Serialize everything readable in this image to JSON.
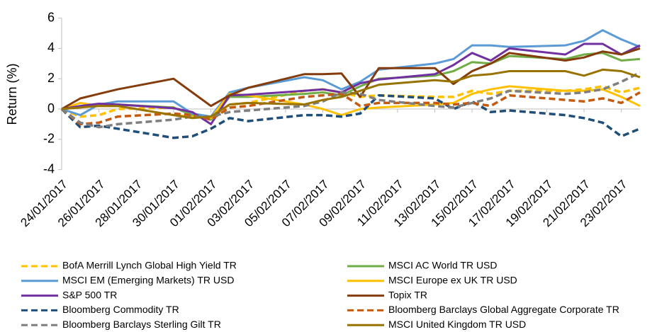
{
  "chart_data": {
    "type": "line",
    "y_label": "Return (%)",
    "x": [
      "24/01/2017",
      "25/01/2017",
      "26/01/2017",
      "27/01/2017",
      "30/01/2017",
      "31/01/2017",
      "01/02/2017",
      "02/02/2017",
      "03/02/2017",
      "06/02/2017",
      "07/02/2017",
      "08/02/2017",
      "09/02/2017",
      "10/02/2017",
      "13/02/2017",
      "14/02/2017",
      "15/02/2017",
      "16/02/2017",
      "17/02/2017",
      "20/02/2017",
      "21/02/2017",
      "22/02/2017",
      "23/02/2017",
      "24/02/2017"
    ],
    "xlim": [
      "24/01/2017",
      "24/02/2017"
    ],
    "xticks": [
      "24/01/2017",
      "26/01/2017",
      "28/01/2017",
      "30/01/2017",
      "01/02/2017",
      "03/02/2017",
      "05/02/2017",
      "07/02/2017",
      "09/02/2017",
      "11/02/2017",
      "13/02/2017",
      "15/02/2017",
      "17/02/2017",
      "19/02/2017",
      "21/02/2017",
      "23/02/2017"
    ],
    "ylim": [
      -4,
      6
    ],
    "yticks": [
      -4,
      -2,
      0,
      2,
      4,
      6
    ],
    "grid": false,
    "series": [
      {
        "name": "BofA Merrill Lynch Global High Yield TR",
        "color": "#ffc000",
        "dash": true,
        "values": [
          0,
          -0.5,
          -0.4,
          0,
          0.1,
          -0.3,
          -0.6,
          0.3,
          0.4,
          1.2,
          1.3,
          1.1,
          0.8,
          0.9,
          0.8,
          0.8,
          1.2,
          1.0,
          1.2,
          1.2,
          1.3,
          1.5,
          1.1,
          1.4
        ]
      },
      {
        "name": "MSCI AC World TR USD",
        "color": "#70ad47",
        "dash": false,
        "values": [
          0,
          0.1,
          0.3,
          0.3,
          0.1,
          -0.4,
          -0.7,
          0.8,
          0.8,
          1.0,
          1.1,
          0.9,
          1.5,
          2.0,
          2.2,
          2.5,
          3.1,
          3.0,
          3.5,
          3.3,
          3.6,
          3.7,
          3.2,
          3.3
        ]
      },
      {
        "name": "MSCI EM (Emerging Markets) TR USD",
        "color": "#5b9bd5",
        "dash": false,
        "values": [
          0,
          -0.4,
          0.3,
          0.5,
          0.5,
          -0.3,
          -0.5,
          1.1,
          1.4,
          2.1,
          1.9,
          1.3,
          1.8,
          2.6,
          3.0,
          3.3,
          4.2,
          4.2,
          4.1,
          4.2,
          4.5,
          5.2,
          4.6,
          4.1
        ]
      },
      {
        "name": "MSCI Europe ex UK TR USD",
        "color": "#ffc000",
        "dash": false,
        "values": [
          0,
          0.4,
          0.2,
          0.2,
          -0.4,
          -0.5,
          -0.6,
          1.0,
          0.9,
          0.3,
          0,
          -0.4,
          0,
          0.1,
          0.3,
          0.4,
          1.0,
          1.3,
          1.5,
          1.2,
          1.2,
          1.3,
          0.8,
          0.2
        ]
      },
      {
        "name": "S&P 500 TR",
        "color": "#7030a0",
        "dash": false,
        "values": [
          0,
          0.2,
          0.35,
          0.3,
          0.05,
          -0.2,
          -1.0,
          0.9,
          0.95,
          1.2,
          1.3,
          1.1,
          1.7,
          1.95,
          2.3,
          2.9,
          3.7,
          3.2,
          4.0,
          3.6,
          4.3,
          4.3,
          3.6,
          4.2
        ]
      },
      {
        "name": "Topix TR",
        "color": "#843c0c",
        "dash": false,
        "values": [
          0,
          0.7,
          1.0,
          1.3,
          2.0,
          1.1,
          0.2,
          0.9,
          1.4,
          2.3,
          2.3,
          2.35,
          0.8,
          2.7,
          2.7,
          1.65,
          2.5,
          3.0,
          3.7,
          3.2,
          3.4,
          3.8,
          3.6,
          4.0
        ]
      },
      {
        "name": "Bloomberg Commodity TR",
        "color": "#1f4e79",
        "dash": true,
        "values": [
          0,
          -1.2,
          -1.1,
          -1.3,
          -1.9,
          -1.8,
          -1.3,
          -0.6,
          -0.8,
          -0.4,
          -0.4,
          -0.5,
          -0.3,
          0.9,
          0.7,
          0,
          0.5,
          -0.2,
          -0.1,
          -0.4,
          -0.6,
          -0.9,
          -1.8,
          -1.3
        ]
      },
      {
        "name": "Bloomberg Barclays Global Aggregate Corporate TR",
        "color": "#c55a11",
        "dash": true,
        "values": [
          0,
          -1.0,
          -0.9,
          -0.5,
          -0.3,
          -0.4,
          -0.7,
          0.1,
          0.2,
          0.8,
          0.9,
          1.0,
          0.2,
          0.4,
          0.4,
          0.3,
          0.4,
          0.2,
          0.9,
          0.6,
          0.5,
          0.7,
          0.4,
          1.1
        ]
      },
      {
        "name": "Bloomberg Barclays Sterling Gilt TR",
        "color": "#7f7f7f",
        "dash": true,
        "values": [
          0,
          -0.9,
          -1.2,
          -1.0,
          -0.7,
          -0.5,
          -0.5,
          -0.2,
          -0.1,
          0.2,
          0.5,
          1.1,
          1.0,
          0.6,
          0.2,
          0.1,
          0.4,
          0.7,
          1.2,
          1.0,
          1.1,
          1.3,
          1.8,
          2.4
        ]
      },
      {
        "name": "MSCI United Kingdom TR USD",
        "color": "#997300",
        "dash": false,
        "values": [
          0,
          0.1,
          0.2,
          0.2,
          -0.4,
          -0.6,
          -0.5,
          0.3,
          0.4,
          0.3,
          0.6,
          0.8,
          1.2,
          1.6,
          1.9,
          1.8,
          2.2,
          2.3,
          2.5,
          2.5,
          2.2,
          2.6,
          2.5,
          2.1
        ]
      }
    ]
  }
}
